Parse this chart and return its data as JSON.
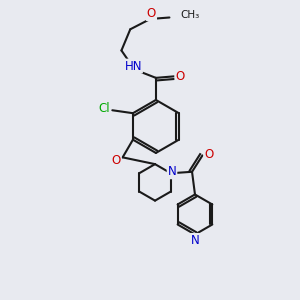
{
  "bg_color": "#e8eaf0",
  "bond_color": "#1a1a1a",
  "bond_width": 1.5,
  "atom_colors": {
    "C": "#1a1a1a",
    "N": "#0000cc",
    "O": "#cc0000",
    "Cl": "#00aa00",
    "H": "#555555"
  },
  "font_size": 8.5,
  "fig_width": 3.0,
  "fig_height": 3.0,
  "dpi": 100,
  "xlim": [
    0,
    10
  ],
  "ylim": [
    0,
    10
  ]
}
